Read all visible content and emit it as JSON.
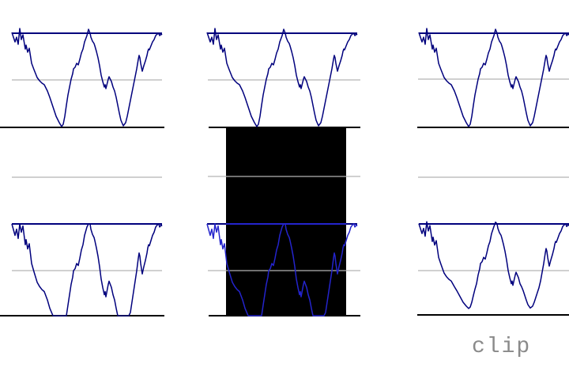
{
  "label": {
    "text": "clip"
  },
  "palette": {
    "background": "#ffffff",
    "ink_blue": "#00007d",
    "ink_blue_bright": "#2424cc",
    "gray_line": "#b4b4b4",
    "baseline_black": "#000000",
    "fill_black": "#000000",
    "label_gray": "#8a8a8a"
  },
  "chart_data": {
    "type": "line",
    "title": "clip",
    "description": "Six waveform panels demonstrating clipping: top row = original signal with blue clip-threshold line at top, gray zero line at middle, black baseline at bottom; bottom row = clipped signal (hard clip left/middle, soft clip right); middle row shows empty zero lines and a solid black filled rectangle spanning the center column between the top-middle baseline and bottom-middle baseline.",
    "grid": {
      "rows": 3,
      "cols": 3
    },
    "threshold_line_role": "clip threshold (blue)",
    "zero_line_role": "mid reference (gray)",
    "baseline_role": "signal floor (black)",
    "base_waveform": {
      "x_range": [
        0,
        190
      ],
      "y_range": [
        -7,
        119
      ],
      "y_down_from_threshold": true,
      "points": [
        [
          0,
          -1
        ],
        [
          4,
          11
        ],
        [
          6,
          5
        ],
        [
          8,
          14
        ],
        [
          10,
          -6
        ],
        [
          12,
          8
        ],
        [
          14,
          2
        ],
        [
          17,
          20
        ],
        [
          18,
          15
        ],
        [
          20,
          24
        ],
        [
          22,
          19
        ],
        [
          25,
          38
        ],
        [
          28,
          46
        ],
        [
          32,
          56
        ],
        [
          35,
          60
        ],
        [
          38,
          63
        ],
        [
          41,
          65
        ],
        [
          45,
          73
        ],
        [
          48,
          81
        ],
        [
          52,
          93
        ],
        [
          56,
          105
        ],
        [
          60,
          113
        ],
        [
          63,
          118
        ],
        [
          65,
          115
        ],
        [
          67,
          105
        ],
        [
          69,
          91
        ],
        [
          71,
          78
        ],
        [
          73,
          68
        ],
        [
          75,
          58
        ],
        [
          77,
          51
        ],
        [
          78,
          45
        ],
        [
          80,
          43
        ],
        [
          82,
          38
        ],
        [
          84,
          40
        ],
        [
          86,
          33
        ],
        [
          88,
          25
        ],
        [
          90,
          20
        ],
        [
          92,
          11
        ],
        [
          95,
          3
        ],
        [
          97,
          -5
        ],
        [
          99,
          0
        ],
        [
          100,
          5
        ],
        [
          102,
          10
        ],
        [
          104,
          13
        ],
        [
          105,
          16
        ],
        [
          107,
          23
        ],
        [
          109,
          31
        ],
        [
          111,
          41
        ],
        [
          113,
          53
        ],
        [
          115,
          61
        ],
        [
          117,
          68
        ],
        [
          118,
          65
        ],
        [
          119,
          70
        ],
        [
          122,
          58
        ],
        [
          123,
          55
        ],
        [
          126,
          61
        ],
        [
          128,
          68
        ],
        [
          130,
          73
        ],
        [
          132,
          81
        ],
        [
          134,
          91
        ],
        [
          136,
          101
        ],
        [
          138,
          110
        ],
        [
          141,
          117
        ],
        [
          144,
          113
        ],
        [
          146,
          105
        ],
        [
          148,
          95
        ],
        [
          150,
          85
        ],
        [
          152,
          75
        ],
        [
          154,
          65
        ],
        [
          156,
          55
        ],
        [
          158,
          45
        ],
        [
          160,
          33
        ],
        [
          161,
          28
        ],
        [
          162,
          31
        ],
        [
          163,
          38
        ],
        [
          165,
          48
        ],
        [
          167,
          41
        ],
        [
          169,
          35
        ],
        [
          171,
          28
        ],
        [
          172,
          23
        ],
        [
          173,
          20
        ],
        [
          174,
          21
        ],
        [
          176,
          16
        ],
        [
          178,
          11
        ],
        [
          180,
          8
        ],
        [
          182,
          3
        ],
        [
          184,
          1
        ],
        [
          186,
          0
        ],
        [
          187,
          3
        ],
        [
          189,
          1
        ],
        [
          190,
          2
        ]
      ]
    },
    "panels": [
      {
        "id": "top-left",
        "row": 1,
        "col": 1,
        "gain": 1.0,
        "clip": "none",
        "stroke": "ink_blue"
      },
      {
        "id": "top-middle",
        "row": 1,
        "col": 2,
        "gain": 1.0,
        "clip": "none",
        "stroke": "ink_blue"
      },
      {
        "id": "top-right",
        "row": 1,
        "col": 3,
        "gain": 1.0,
        "clip": "none",
        "stroke": "ink_blue"
      },
      {
        "id": "bottom-left",
        "row": 3,
        "col": 1,
        "gain": 1.35,
        "clip": "hard",
        "stroke": "ink_blue"
      },
      {
        "id": "bottom-middle",
        "row": 3,
        "col": 2,
        "gain": 1.35,
        "clip": "hard",
        "stroke": "ink_blue_bright"
      },
      {
        "id": "bottom-right",
        "row": 3,
        "col": 3,
        "gain": 1.15,
        "clip": "soft",
        "knee": 80,
        "ratio": 0.55,
        "top_ratio": 0.4,
        "stroke": "ink_blue"
      }
    ]
  }
}
